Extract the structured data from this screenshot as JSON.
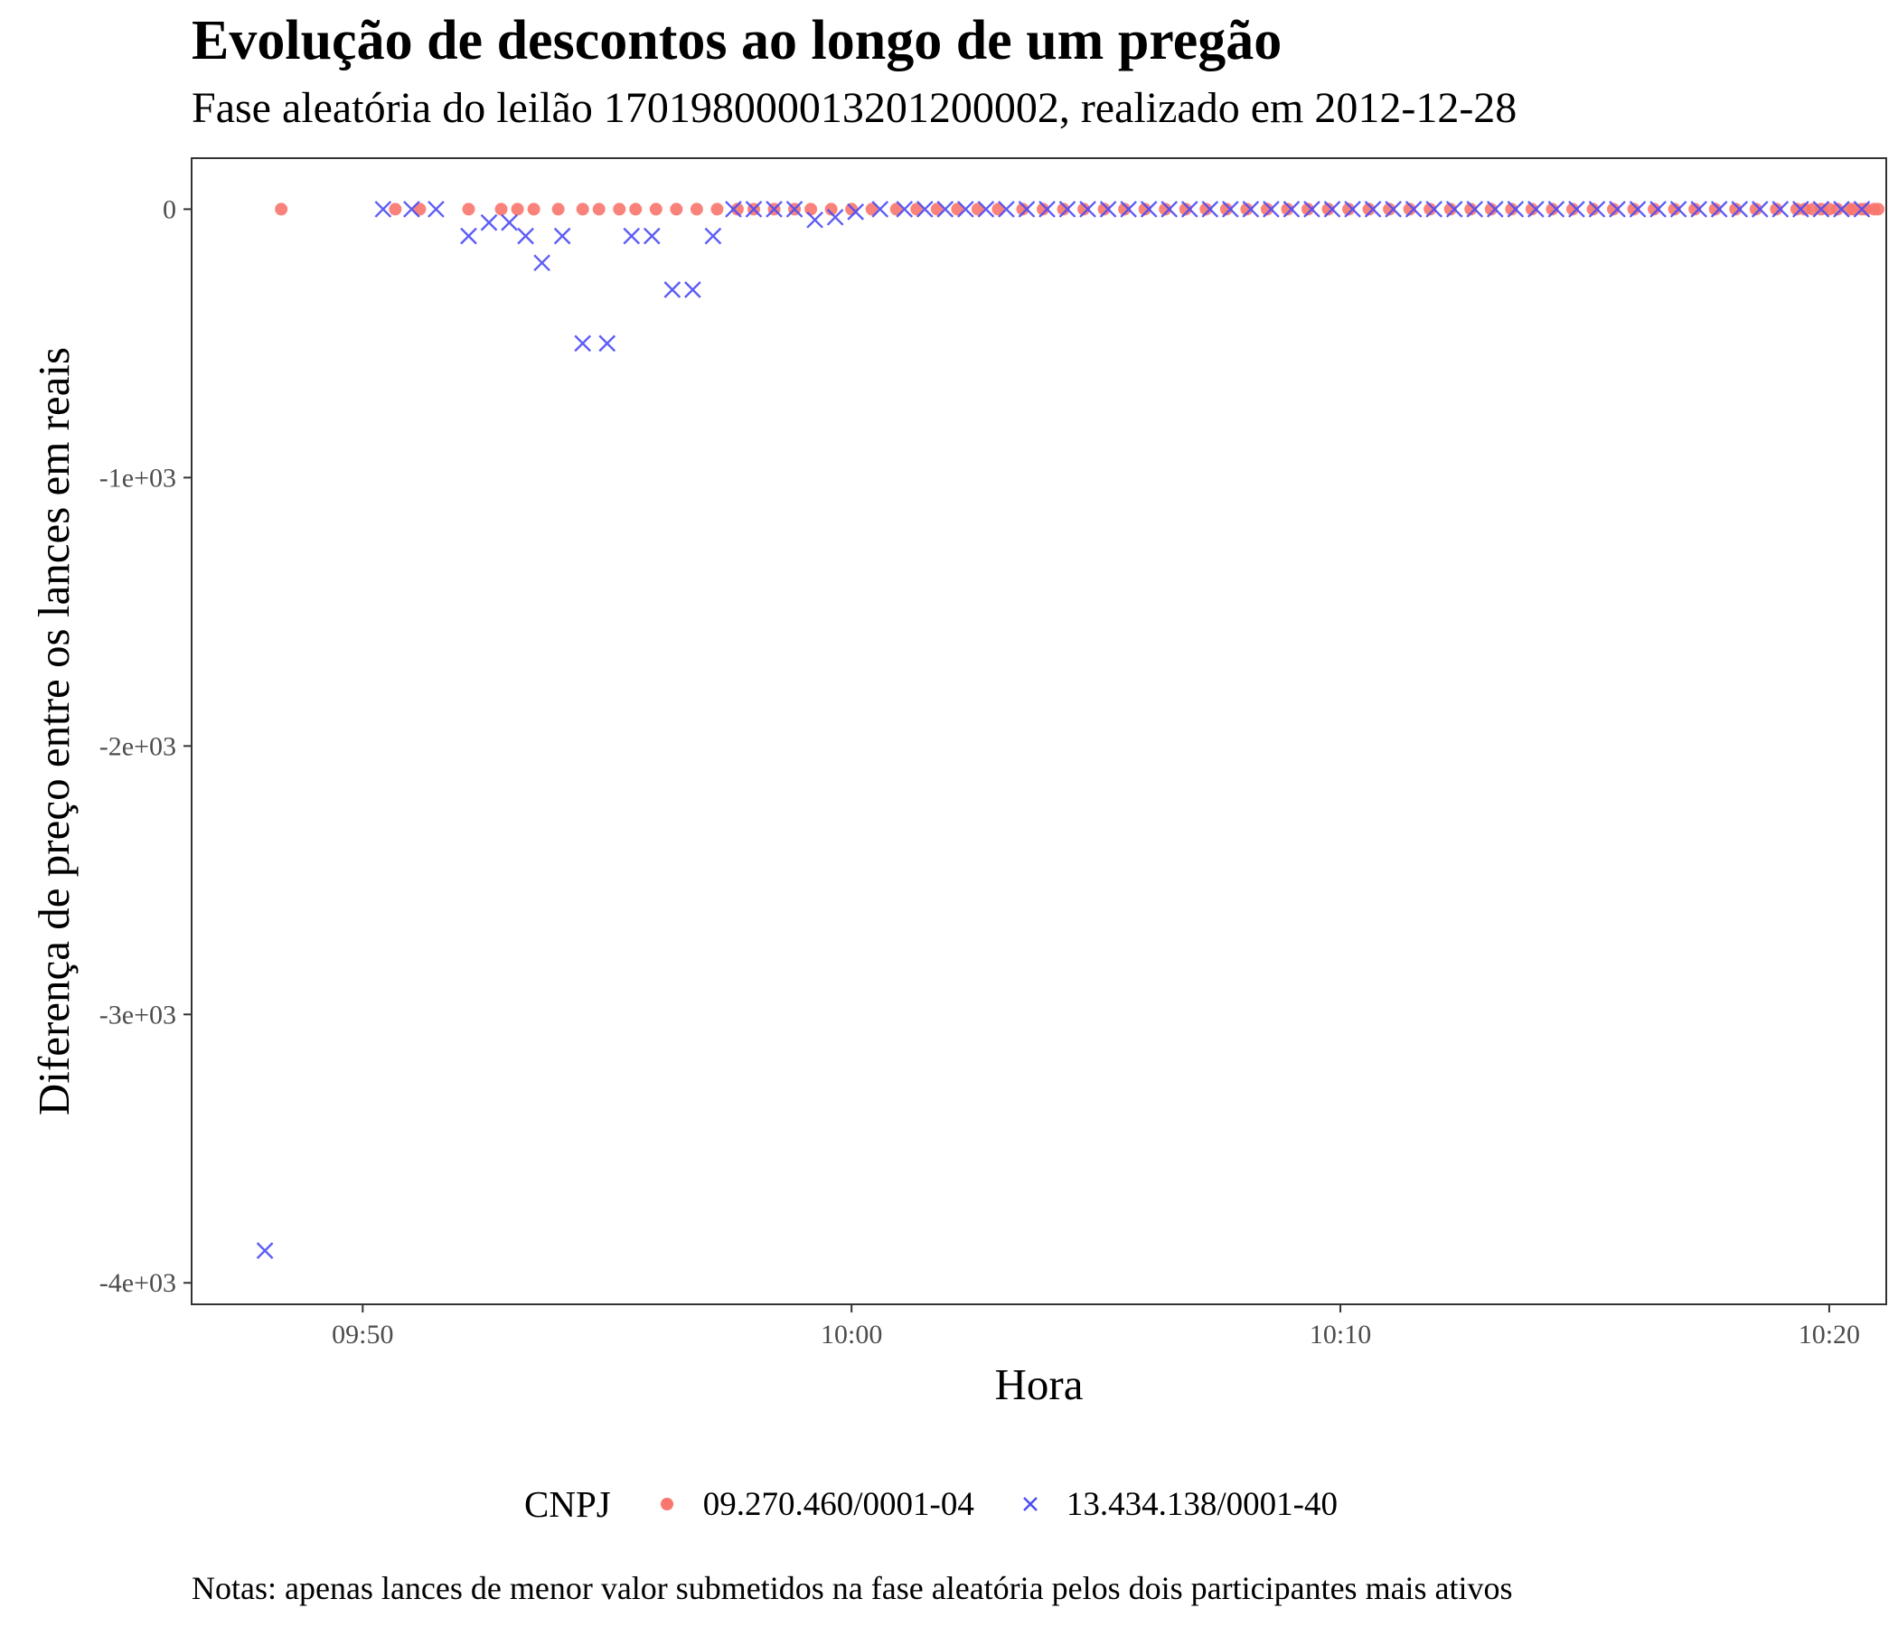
{
  "title": "Evolução de descontos ao longo de um pregão",
  "subtitle": "Fase aleatória do leilão 170198000013201200002, realizado em 2012-12-28",
  "note": "Notas: apenas lances de menor valor submetidos na fase aleatória pelos dois participantes mais ativos",
  "legend": {
    "title": "CNPJ",
    "items": [
      {
        "label": "09.270.460/0001-04",
        "shape": "circle",
        "color": "#f8766d"
      },
      {
        "label": "13.434.138/0001-40",
        "shape": "cross",
        "color": "#4b4bf5"
      }
    ]
  },
  "chart_data": {
    "type": "scatter",
    "xlabel": "Hora",
    "ylabel": "Diferença de preço entre os lances em reais",
    "x_unit": "minutes of clock time",
    "xlim": [
      "09:46:30",
      "10:21:10"
    ],
    "ylim": [
      -4080,
      190
    ],
    "x_ticks": [
      "09:50",
      "10:00",
      "10:10",
      "10:20"
    ],
    "y_ticks": [
      0,
      -1000,
      -2000,
      -3000,
      -4000
    ],
    "y_tick_labels": [
      "0",
      "-1e+03",
      "-2e+03",
      "-3e+03",
      "-4e+03"
    ],
    "grid": false,
    "legend_position": "bottom",
    "series": [
      {
        "name": "09.270.460/0001-04",
        "marker": "circle",
        "color": "#f8766d",
        "x": [
          "09:48:20",
          "09:50:40",
          "09:51:10",
          "09:52:10",
          "09:52:50",
          "09:53:10",
          "09:53:30",
          "09:54:00",
          "09:54:30",
          "09:54:50",
          "09:55:15",
          "09:55:35",
          "09:56:00",
          "09:56:25",
          "09:56:50",
          "09:57:15",
          "09:57:40",
          "09:58:00",
          "09:58:25",
          "09:58:50",
          "09:59:10",
          "09:59:35",
          "10:00:00",
          "10:00:25",
          "10:00:55",
          "10:01:20",
          "10:01:45",
          "10:02:10",
          "10:02:35",
          "10:03:00",
          "10:03:30",
          "10:03:55",
          "10:04:20",
          "10:04:45",
          "10:05:10",
          "10:05:35",
          "10:06:00",
          "10:06:25",
          "10:06:50",
          "10:07:15",
          "10:07:40",
          "10:08:05",
          "10:08:30",
          "10:08:55",
          "10:09:20",
          "10:09:45",
          "10:10:10",
          "10:10:35",
          "10:11:00",
          "10:11:25",
          "10:11:50",
          "10:12:15",
          "10:12:40",
          "10:13:05",
          "10:13:30",
          "10:13:55",
          "10:14:20",
          "10:14:45",
          "10:15:10",
          "10:15:35",
          "10:16:00",
          "10:16:25",
          "10:16:50",
          "10:17:15",
          "10:17:40",
          "10:18:05",
          "10:18:30",
          "10:18:55",
          "10:19:20",
          "10:19:40",
          "10:20:00",
          "10:20:10",
          "10:20:25",
          "10:20:40",
          "10:20:55",
          "10:21:00",
          "10:20:45",
          "10:20:30",
          "10:19:50",
          "10:19:30"
        ],
        "y": [
          0,
          0,
          0,
          0,
          0,
          0,
          0,
          0,
          0,
          0,
          0,
          0,
          0,
          0,
          0,
          0,
          0,
          0,
          0,
          0,
          0,
          0,
          0,
          0,
          0,
          0,
          0,
          0,
          0,
          0,
          0,
          0,
          0,
          0,
          0,
          0,
          0,
          0,
          0,
          0,
          0,
          0,
          0,
          0,
          0,
          0,
          0,
          0,
          0,
          0,
          0,
          0,
          0,
          0,
          0,
          0,
          0,
          0,
          0,
          0,
          0,
          0,
          0,
          0,
          0,
          0,
          0,
          0,
          0,
          0,
          0,
          0,
          0,
          0,
          0,
          0,
          0,
          0,
          0,
          0
        ]
      },
      {
        "name": "13.434.138/0001-40",
        "marker": "cross",
        "color": "#4b4bf5",
        "x": [
          "09:48:00",
          "09:50:25",
          "09:51:00",
          "09:51:30",
          "09:52:10",
          "09:52:35",
          "09:53:00",
          "09:53:20",
          "09:53:40",
          "09:54:05",
          "09:54:30",
          "09:55:00",
          "09:55:30",
          "09:55:55",
          "09:56:20",
          "09:56:45",
          "09:57:10",
          "09:57:35",
          "09:58:00",
          "09:58:25",
          "09:58:50",
          "09:59:15",
          "09:59:40",
          "10:00:05",
          "10:00:35",
          "10:01:05",
          "10:01:30",
          "10:01:55",
          "10:02:20",
          "10:02:45",
          "10:03:10",
          "10:03:35",
          "10:04:00",
          "10:04:25",
          "10:04:50",
          "10:05:15",
          "10:05:40",
          "10:06:05",
          "10:06:30",
          "10:06:55",
          "10:07:20",
          "10:07:45",
          "10:08:10",
          "10:08:35",
          "10:09:00",
          "10:09:25",
          "10:09:50",
          "10:10:15",
          "10:10:40",
          "10:11:05",
          "10:11:30",
          "10:11:55",
          "10:12:20",
          "10:12:45",
          "10:13:10",
          "10:13:35",
          "10:14:00",
          "10:14:25",
          "10:14:50",
          "10:15:15",
          "10:15:40",
          "10:16:05",
          "10:16:30",
          "10:16:55",
          "10:17:20",
          "10:17:45",
          "10:18:10",
          "10:18:35",
          "10:19:00",
          "10:19:25",
          "10:19:50",
          "10:20:15",
          "10:20:40"
        ],
        "y": [
          -3880,
          0,
          0,
          0,
          -100,
          -50,
          -50,
          -100,
          -200,
          -100,
          -500,
          -500,
          -100,
          -100,
          -300,
          -300,
          -100,
          0,
          0,
          0,
          0,
          -40,
          -30,
          -10,
          0,
          0,
          0,
          0,
          0,
          0,
          0,
          0,
          0,
          0,
          0,
          0,
          0,
          0,
          0,
          0,
          0,
          0,
          0,
          0,
          0,
          0,
          0,
          0,
          0,
          0,
          0,
          0,
          0,
          0,
          0,
          0,
          0,
          0,
          0,
          0,
          0,
          0,
          0,
          0,
          0,
          0,
          0,
          0,
          0,
          0,
          0,
          0,
          0
        ]
      }
    ]
  }
}
